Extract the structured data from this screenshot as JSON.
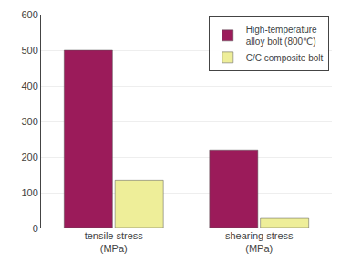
{
  "chart_data": {
    "type": "bar",
    "categories": [
      "tensile stress\n(MPa)",
      "shearing stress\n(MPa)"
    ],
    "series": [
      {
        "name": "High-temperature\nalloy bolt (800℃)",
        "color": "#9B1B5A",
        "values": [
          500,
          220
        ]
      },
      {
        "name": "C/C composite bolt",
        "color": "#EEEE99",
        "values": [
          135,
          28
        ]
      }
    ],
    "ylim": [
      0,
      600
    ],
    "yticks": [
      0,
      100,
      200,
      300,
      400,
      500,
      600
    ],
    "grid": true,
    "legend": "upper right"
  }
}
